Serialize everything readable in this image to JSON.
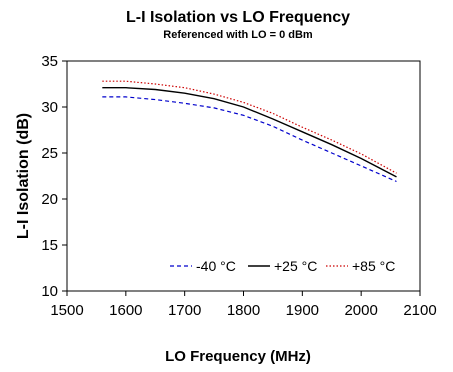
{
  "chart_data": {
    "type": "line",
    "title": "L-I Isolation vs LO Frequency",
    "subtitle": "Referenced with LO = 0 dBm",
    "xlabel": "LO Frequency (MHz)",
    "ylabel": "L-I Isolation (dB)",
    "xlim": [
      1500,
      2100
    ],
    "ylim": [
      10,
      35
    ],
    "xticks": [
      1500,
      1600,
      1700,
      1800,
      1900,
      2000,
      2100
    ],
    "yticks": [
      10,
      15,
      20,
      25,
      30,
      35
    ],
    "grid": false,
    "legend_position": "bottom-right",
    "x": [
      1560,
      1600,
      1650,
      1700,
      1750,
      1800,
      1850,
      1900,
      1950,
      2000,
      2060
    ],
    "series": [
      {
        "name": "-40 °C",
        "color": "#0000cc",
        "dash": "dashed",
        "values": [
          31.1,
          31.1,
          30.8,
          30.4,
          29.9,
          29.1,
          27.9,
          26.4,
          25.0,
          23.6,
          21.9
        ]
      },
      {
        "name": "+25 °C",
        "color": "#000000",
        "dash": "solid",
        "values": [
          32.1,
          32.1,
          31.9,
          31.5,
          30.9,
          30.0,
          28.7,
          27.3,
          25.9,
          24.4,
          22.4
        ]
      },
      {
        "name": "+85 °C",
        "color": "#cc0000",
        "dash": "dotted",
        "values": [
          32.8,
          32.8,
          32.5,
          32.1,
          31.4,
          30.5,
          29.3,
          27.8,
          26.4,
          24.9,
          22.8
        ]
      }
    ]
  }
}
